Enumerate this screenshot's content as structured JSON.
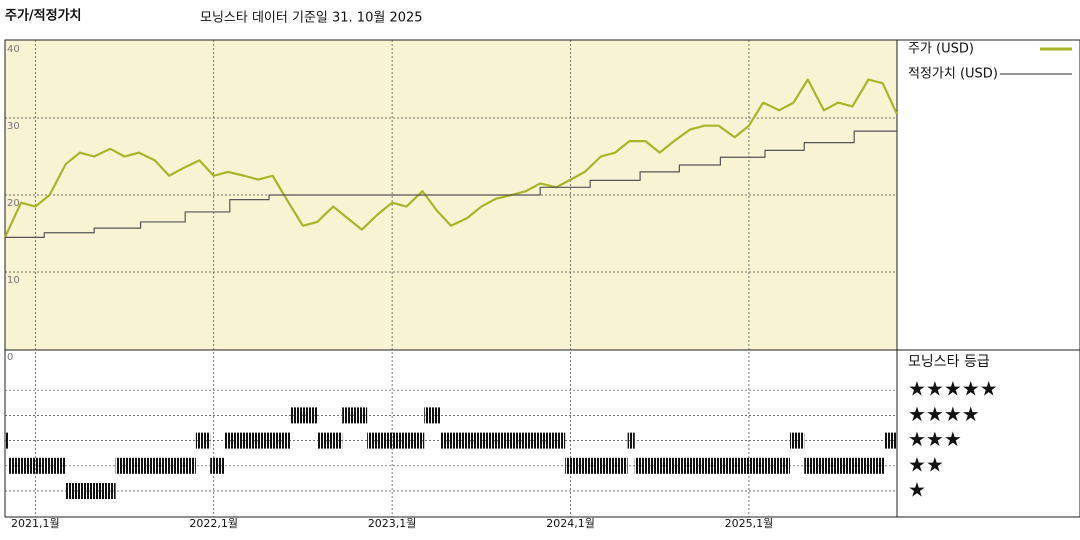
{
  "chart_data": {
    "type": "line",
    "title": "주가/적정가치",
    "subtitle": "모닝스타 데이터 기준일 31. 10월 2025",
    "xlim": [
      2020.83,
      2025.83
    ],
    "xticks": [
      {
        "value": 2021,
        "label": "2021,1월"
      },
      {
        "value": 2022,
        "label": "2022,1월"
      },
      {
        "value": 2023,
        "label": "2023,1월"
      },
      {
        "value": 2024,
        "label": "2024,1월"
      },
      {
        "value": 2025,
        "label": "2025,1월"
      }
    ],
    "ylim": [
      0,
      40
    ],
    "yticks": [
      0,
      10,
      20,
      30,
      40
    ],
    "grid": true,
    "series": [
      {
        "name": "주가 (USD)",
        "color": "#a9b526",
        "step": false,
        "x": [
          2020.83,
          2020.92,
          2021.0,
          2021.08,
          2021.17,
          2021.25,
          2021.33,
          2021.42,
          2021.5,
          2021.58,
          2021.67,
          2021.75,
          2021.83,
          2021.92,
          2022.0,
          2022.08,
          2022.17,
          2022.25,
          2022.33,
          2022.42,
          2022.5,
          2022.58,
          2022.67,
          2022.75,
          2022.83,
          2022.92,
          2023.0,
          2023.08,
          2023.17,
          2023.25,
          2023.33,
          2023.42,
          2023.5,
          2023.58,
          2023.67,
          2023.75,
          2023.83,
          2023.92,
          2024.0,
          2024.08,
          2024.17,
          2024.25,
          2024.33,
          2024.42,
          2024.5,
          2024.58,
          2024.67,
          2024.75,
          2024.83,
          2024.92,
          2025.0,
          2025.08,
          2025.17,
          2025.25,
          2025.33,
          2025.42,
          2025.5,
          2025.58,
          2025.67,
          2025.75,
          2025.83
        ],
        "values": [
          14.5,
          19,
          18.5,
          20,
          24,
          25.5,
          25,
          26,
          25,
          25.5,
          24.5,
          22.5,
          23.5,
          24.5,
          22.5,
          23,
          22.5,
          22,
          22.5,
          19,
          16,
          16.5,
          18.5,
          17,
          15.5,
          17.5,
          19,
          18.5,
          20.5,
          18,
          16,
          17,
          18.5,
          19.5,
          20,
          20.5,
          21.5,
          21,
          22,
          23,
          25,
          25.5,
          27,
          27,
          25.5,
          27,
          28.5,
          29,
          29,
          27.5,
          29,
          32,
          31,
          32,
          35,
          31,
          32,
          31.5,
          35,
          34.5,
          30.5
        ]
      },
      {
        "name": "적정가치 (USD)",
        "color": "#555555",
        "step": true,
        "x": [
          2020.83,
          2021.05,
          2021.33,
          2021.59,
          2021.84,
          2022.09,
          2022.31,
          2023.83,
          2024.11,
          2024.39,
          2024.61,
          2024.84,
          2025.09,
          2025.31,
          2025.59,
          2025.83
        ],
        "values": [
          14.5,
          15.1,
          15.7,
          16.5,
          17.8,
          19.4,
          20.0,
          21.0,
          21.9,
          23.0,
          23.9,
          24.9,
          25.8,
          26.8,
          28.3,
          28.3
        ]
      }
    ],
    "rating_title": "모닝스타 등급",
    "rating_levels": [
      {
        "stars": 5,
        "label": "★★★★★"
      },
      {
        "stars": 4,
        "label": "★★★★"
      },
      {
        "stars": 3,
        "label": "★★★"
      },
      {
        "stars": 2,
        "label": "★★"
      },
      {
        "stars": 1,
        "label": "★"
      }
    ],
    "rating_periods": [
      {
        "start": 2020.83,
        "end": 2020.85,
        "stars": 3
      },
      {
        "start": 2020.85,
        "end": 2021.17,
        "stars": 2
      },
      {
        "start": 2021.17,
        "end": 2021.45,
        "stars": 1
      },
      {
        "start": 2021.45,
        "end": 2021.9,
        "stars": 2
      },
      {
        "start": 2021.9,
        "end": 2021.98,
        "stars": 3
      },
      {
        "start": 2021.98,
        "end": 2022.06,
        "stars": 2
      },
      {
        "start": 2022.06,
        "end": 2022.43,
        "stars": 3
      },
      {
        "start": 2022.43,
        "end": 2022.58,
        "stars": 4
      },
      {
        "start": 2022.58,
        "end": 2022.72,
        "stars": 3
      },
      {
        "start": 2022.72,
        "end": 2022.86,
        "stars": 4
      },
      {
        "start": 2022.86,
        "end": 2023.18,
        "stars": 3
      },
      {
        "start": 2023.18,
        "end": 2023.27,
        "stars": 4
      },
      {
        "start": 2023.27,
        "end": 2023.97,
        "stars": 3
      },
      {
        "start": 2023.97,
        "end": 2024.32,
        "stars": 2
      },
      {
        "start": 2024.32,
        "end": 2024.36,
        "stars": 3
      },
      {
        "start": 2024.36,
        "end": 2025.23,
        "stars": 2
      },
      {
        "start": 2025.23,
        "end": 2025.31,
        "stars": 3
      },
      {
        "start": 2025.31,
        "end": 2025.76,
        "stars": 2
      },
      {
        "start": 2025.76,
        "end": 2025.83,
        "stars": 3
      }
    ]
  }
}
